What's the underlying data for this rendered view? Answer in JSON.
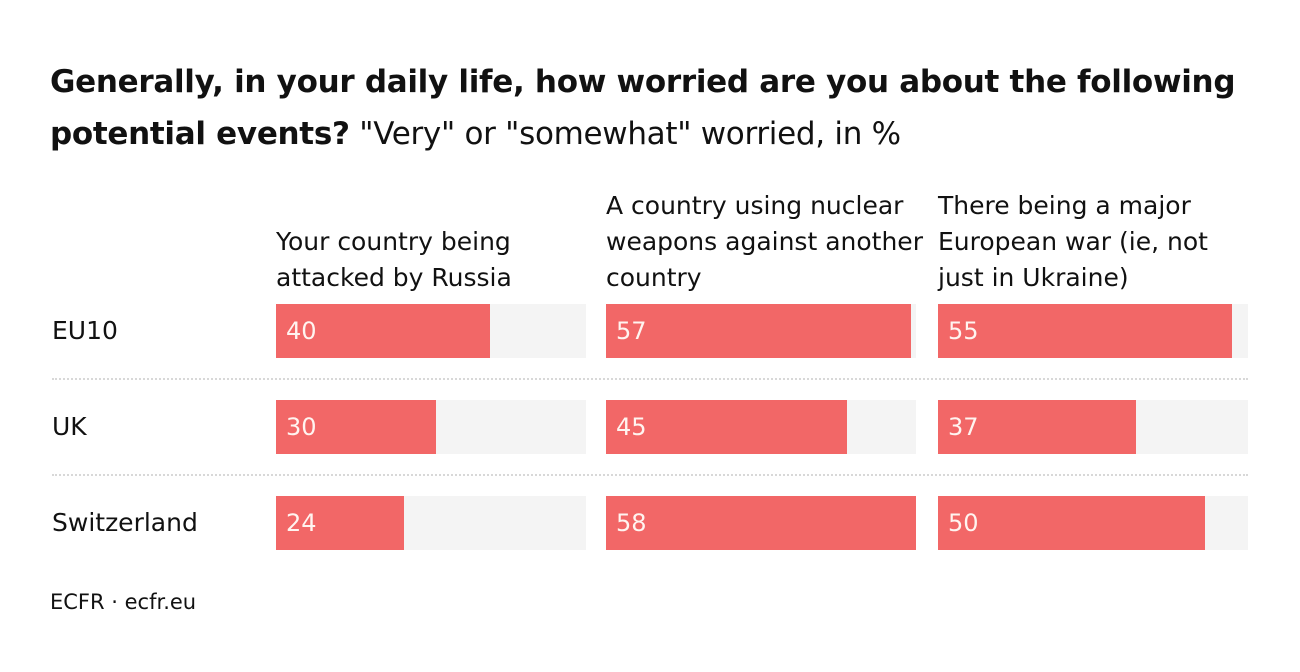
{
  "chart_data": {
    "type": "bar",
    "title": "Generally, in your daily life, how worried are you about the following potential events?",
    "subtitle": "\"Very\" or \"somewhat\" worried, in %",
    "categories": [
      "EU10",
      "UK",
      "Switzerland"
    ],
    "series": [
      {
        "name": "Your country being attacked by Russia",
        "color": "#f26767",
        "values": [
          40,
          30,
          24
        ]
      },
      {
        "name": "A country using nuclear weapons against another country",
        "color": "#f26767",
        "values": [
          57,
          45,
          58
        ]
      },
      {
        "name": "There being a major European war (ie, not just in Ukraine)",
        "color": "#f26767",
        "values": [
          55,
          37,
          50
        ]
      }
    ],
    "xlim": [
      0,
      58
    ],
    "track_color": "#f4f4f4",
    "source": "ECFR · ecfr.eu"
  }
}
